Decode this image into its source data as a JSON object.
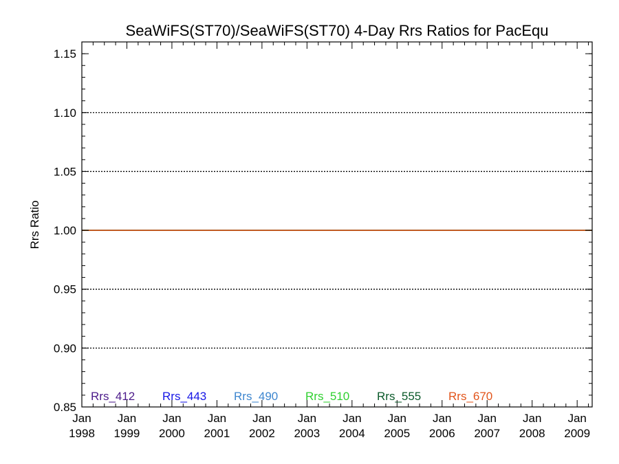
{
  "chart_data": {
    "type": "line",
    "title": "SeaWiFS(ST70)/SeaWiFS(ST70) 4-Day Rrs Ratios for PacEqu",
    "xlabel": "",
    "ylabel": "Rrs Ratio",
    "xlim": [
      "1998-01",
      "2009-05"
    ],
    "ylim": [
      0.85,
      1.16
    ],
    "y_ticks": [
      "0.85",
      "0.90",
      "0.95",
      "1.00",
      "1.05",
      "1.10",
      "1.15"
    ],
    "y_gridlines": [
      0.9,
      0.95,
      1.0,
      1.05,
      1.1
    ],
    "grid": "dotted horizontal",
    "x_ticks": [
      {
        "month": "Jan",
        "year": "1998"
      },
      {
        "month": "Jan",
        "year": "1999"
      },
      {
        "month": "Jan",
        "year": "2000"
      },
      {
        "month": "Jan",
        "year": "2001"
      },
      {
        "month": "Jan",
        "year": "2002"
      },
      {
        "month": "Jan",
        "year": "2003"
      },
      {
        "month": "Jan",
        "year": "2004"
      },
      {
        "month": "Jan",
        "year": "2005"
      },
      {
        "month": "Jan",
        "year": "2006"
      },
      {
        "month": "Jan",
        "year": "2007"
      },
      {
        "month": "Jan",
        "year": "2008"
      },
      {
        "month": "Jan",
        "year": "2009"
      }
    ],
    "legend_placement": "bottom, inside plot",
    "series": [
      {
        "name": "Rrs_412",
        "color": "#4b1a8a",
        "x": [
          "1998-01",
          "2009-05"
        ],
        "y": [
          1.0,
          1.0
        ]
      },
      {
        "name": "Rrs_443",
        "color": "#1515e6",
        "x": [
          "1998-01",
          "2009-05"
        ],
        "y": [
          1.0,
          1.0
        ]
      },
      {
        "name": "Rrs_490",
        "color": "#3d86cf",
        "x": [
          "1998-01",
          "2009-05"
        ],
        "y": [
          1.0,
          1.0
        ]
      },
      {
        "name": "Rrs_510",
        "color": "#2fd02f",
        "x": [
          "1998-01",
          "2009-05"
        ],
        "y": [
          1.0,
          1.0
        ]
      },
      {
        "name": "Rrs_555",
        "color": "#0b5a2a",
        "x": [
          "1998-01",
          "2009-05"
        ],
        "y": [
          1.0,
          1.0
        ]
      },
      {
        "name": "Rrs_670",
        "color": "#e2541a",
        "x": [
          "1998-01",
          "2009-05"
        ],
        "y": [
          1.0,
          1.0
        ]
      }
    ]
  }
}
